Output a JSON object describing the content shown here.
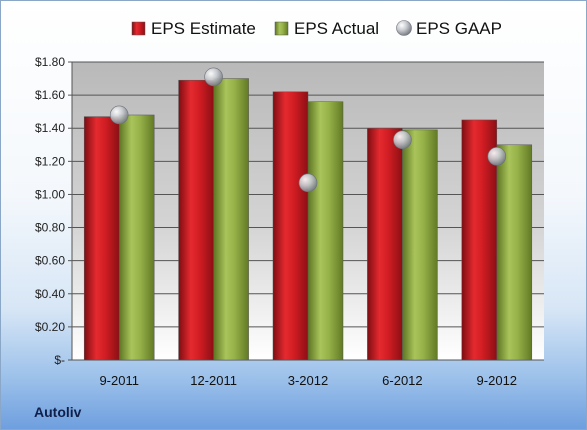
{
  "company": "Autoliv",
  "chart_data": {
    "type": "bar",
    "title": "",
    "xlabel": "",
    "ylabel": "",
    "categories": [
      "9-2011",
      "12-2011",
      "3-2012",
      "6-2012",
      "9-2012"
    ],
    "series": [
      {
        "name": "EPS Estimate",
        "kind": "bar",
        "color": "#c0161d",
        "values": [
          1.47,
          1.69,
          1.62,
          1.4,
          1.45
        ]
      },
      {
        "name": "EPS Actual",
        "kind": "bar",
        "color": "#8aa63a",
        "values": [
          1.48,
          1.7,
          1.56,
          1.39,
          1.3
        ]
      },
      {
        "name": "EPS GAAP",
        "kind": "marker",
        "color": "#b9bcc2",
        "values": [
          1.48,
          1.71,
          1.07,
          1.33,
          1.23
        ]
      }
    ],
    "ylim": [
      0,
      1.8
    ],
    "yticks": [
      0,
      0.2,
      0.4,
      0.6,
      0.8,
      1.0,
      1.2,
      1.4,
      1.6,
      1.8
    ],
    "ytick_labels": [
      "$-",
      "$0.20",
      "$0.40",
      "$0.60",
      "$0.80",
      "$1.00",
      "$1.20",
      "$1.40",
      "$1.60",
      "$1.80"
    ],
    "legend_position": "top",
    "grid": true
  }
}
